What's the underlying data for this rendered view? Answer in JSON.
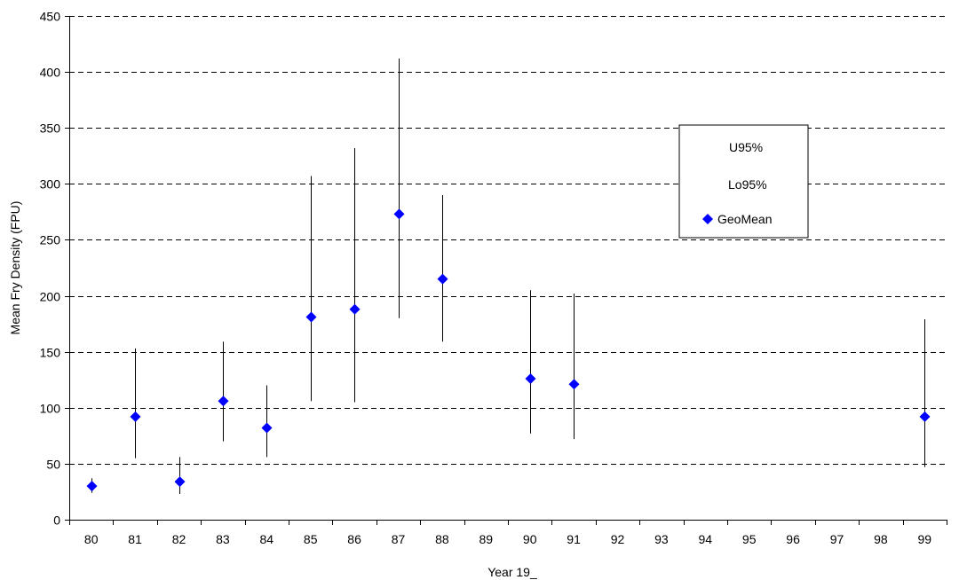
{
  "chart_data": {
    "type": "scatter",
    "title": "",
    "xlabel": "Year 19_",
    "ylabel": "Mean Fry Density (FPU)",
    "ylim": [
      0,
      450
    ],
    "yticks": [
      0,
      50,
      100,
      150,
      200,
      250,
      300,
      350,
      400,
      450
    ],
    "categories": [
      "80",
      "81",
      "82",
      "83",
      "84",
      "85",
      "86",
      "87",
      "88",
      "89",
      "90",
      "91",
      "92",
      "93",
      "94",
      "95",
      "96",
      "97",
      "98",
      "99"
    ],
    "grid": "horizontal dashed",
    "legend_position": "upper-right",
    "legend": [
      "U95%",
      "Lo95%",
      "GeoMean"
    ],
    "series": [
      {
        "name": "GeoMean",
        "values": [
          30,
          92,
          34,
          106,
          82,
          181,
          188,
          273,
          215,
          null,
          126,
          121,
          null,
          null,
          null,
          null,
          null,
          null,
          null,
          92
        ]
      },
      {
        "name": "U95%",
        "values": [
          37,
          153,
          56,
          159,
          120,
          307,
          332,
          412,
          290,
          null,
          205,
          202,
          null,
          null,
          null,
          null,
          null,
          null,
          null,
          179
        ]
      },
      {
        "name": "Lo95%",
        "values": [
          24,
          55,
          23,
          70,
          56,
          106,
          105,
          180,
          159,
          null,
          77,
          72,
          null,
          null,
          null,
          null,
          null,
          null,
          null,
          47
        ]
      }
    ],
    "colors": {
      "marker": "#0000ff",
      "errorbar": "#000000",
      "grid": "#000000"
    }
  }
}
